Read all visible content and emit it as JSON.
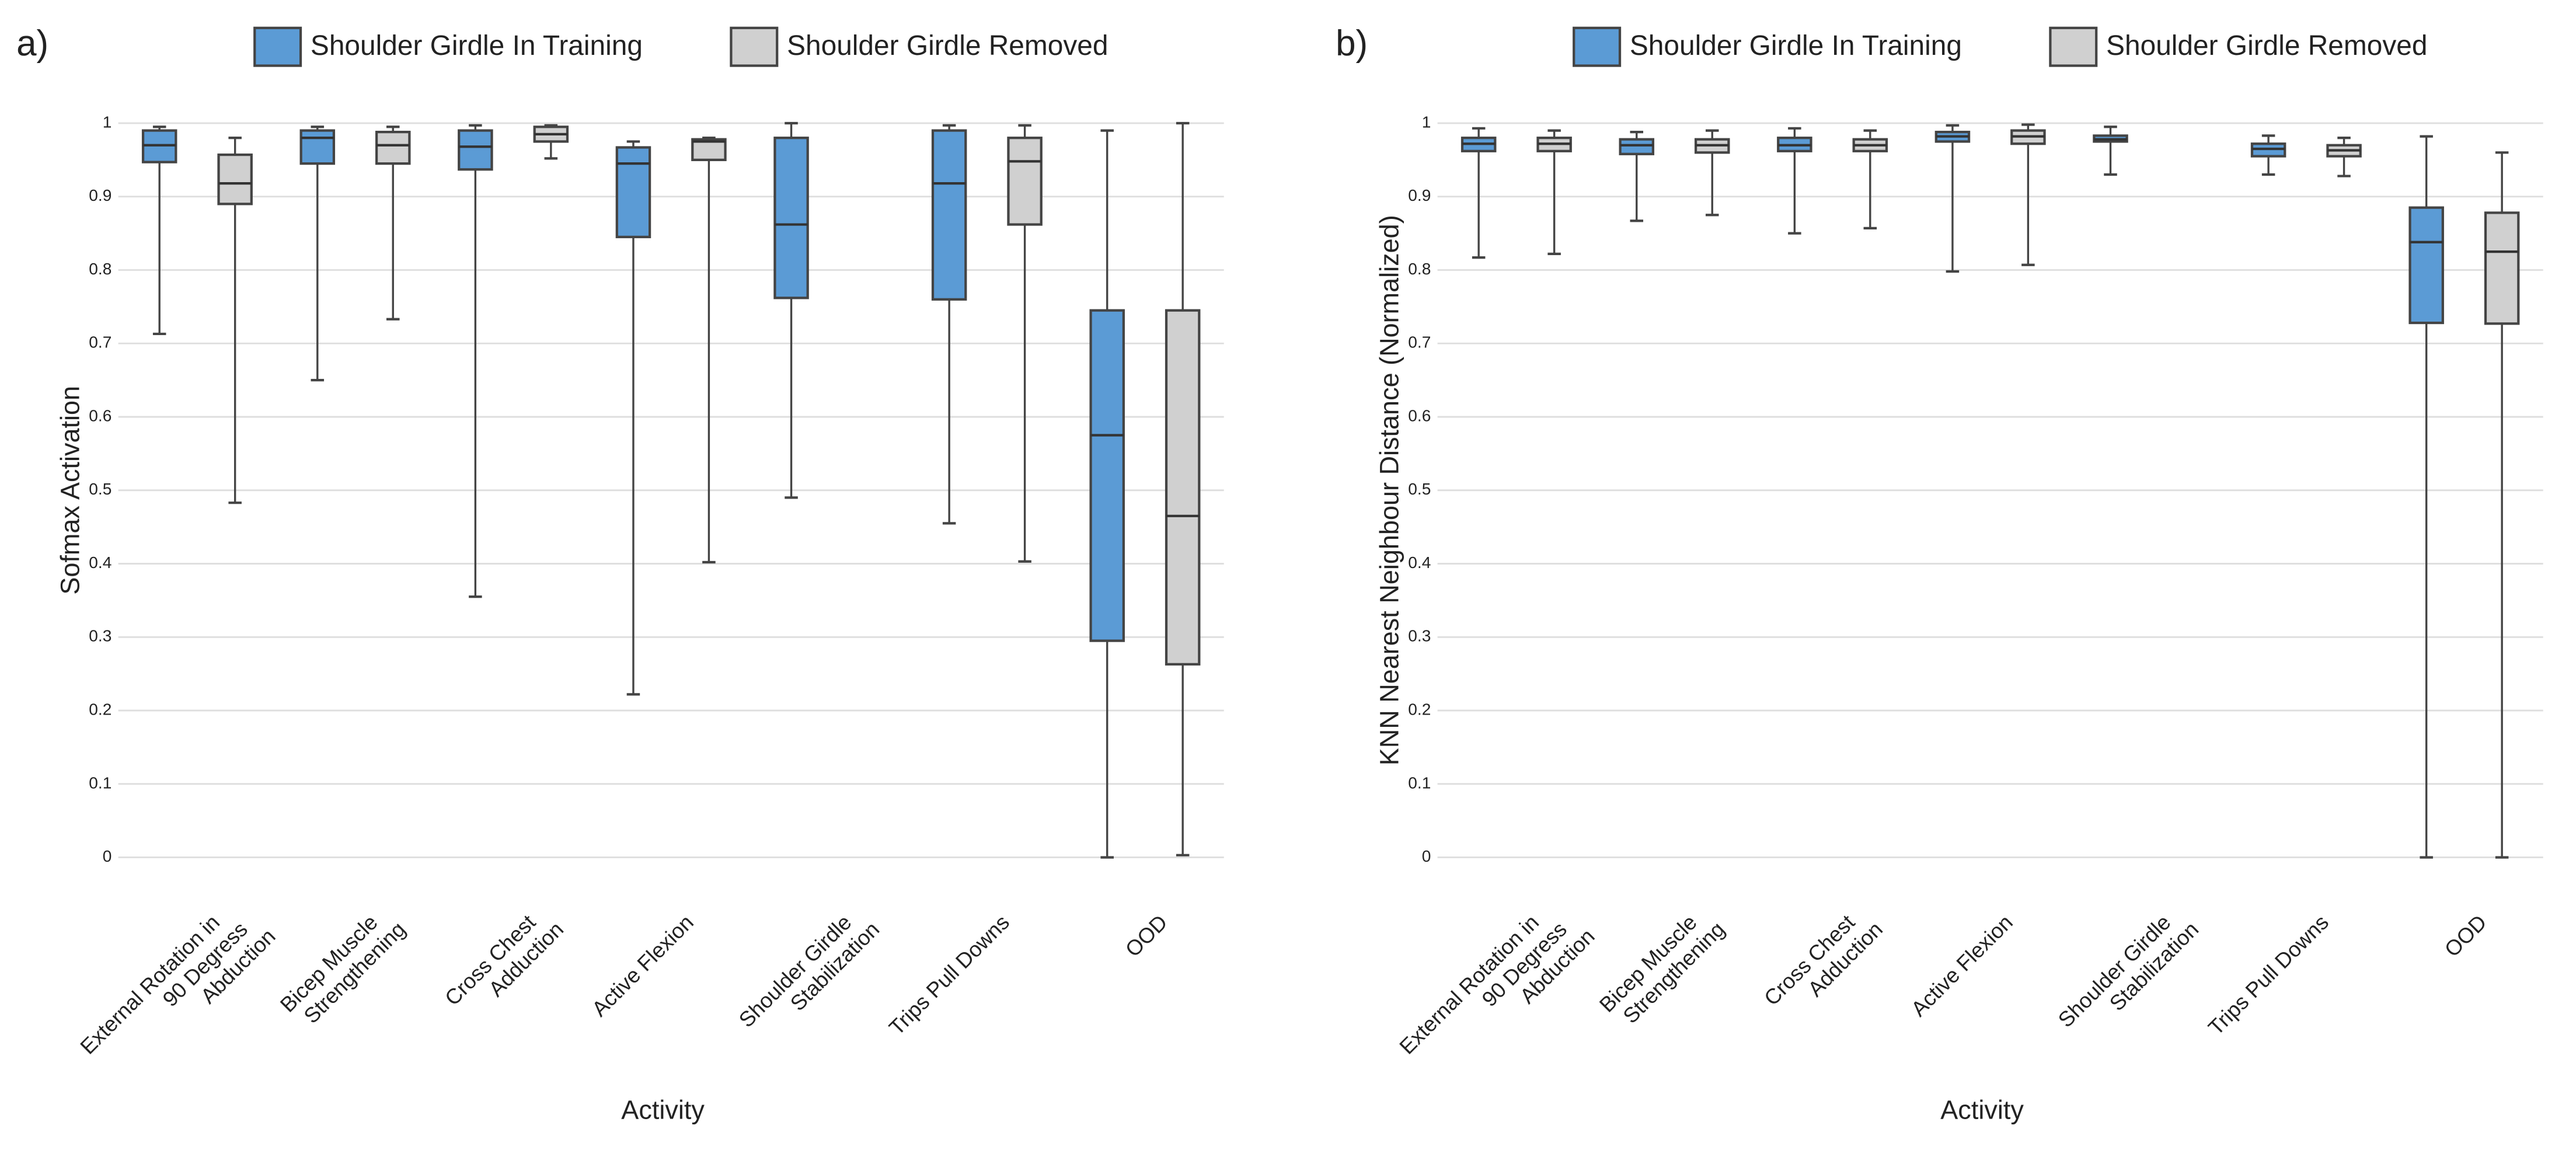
{
  "chart_data": [
    {
      "type": "box",
      "panel": "a)",
      "ylabel": "Sofmax Activation",
      "xlabel": "Activity",
      "categories": [
        [
          "External Rotation in",
          "90 Degress",
          "Abduction"
        ],
        [
          "Bicep Muscle",
          "Strengthening"
        ],
        [
          "Cross Chest",
          "Adduction"
        ],
        [
          "Active Flexion"
        ],
        [
          "Shoulder Girdle",
          "Stabilization"
        ],
        [
          "Trips Pull Downs"
        ],
        [
          "OOD"
        ]
      ],
      "series": [
        {
          "name": "Shoulder Girdle In Training",
          "color": "#5b9bd5",
          "min": [
            0.713,
            0.65,
            0.355,
            0.222,
            0.49,
            0.455,
            0
          ],
          "q1": [
            0.947,
            0.945,
            0.937,
            0.845,
            0.762,
            0.76,
            0.295
          ],
          "median": [
            0.97,
            0.98,
            0.968,
            0.945,
            0.862,
            0.918,
            0.575
          ],
          "q3": [
            0.99,
            0.99,
            0.99,
            0.967,
            0.98,
            0.99,
            0.745
          ],
          "max": [
            0.995,
            0.995,
            0.997,
            0.975,
            1,
            0.997,
            0.99
          ]
        },
        {
          "name": "Shoulder Girdle Removed",
          "color": "#d0d0d0",
          "min": [
            0.483,
            0.733,
            0.952,
            0.402,
            null,
            0.403,
            0.003
          ],
          "q1": [
            0.89,
            0.945,
            0.975,
            0.95,
            null,
            0.862,
            0.263
          ],
          "median": [
            0.918,
            0.97,
            0.985,
            0.975,
            null,
            0.948,
            0.465
          ],
          "q3": [
            0.957,
            0.988,
            0.995,
            0.978,
            null,
            0.98,
            0.745
          ],
          "max": [
            0.98,
            0.995,
            0.997,
            0.98,
            null,
            0.997,
            1
          ]
        }
      ],
      "ylim": [
        0,
        1
      ],
      "yticks": [
        0,
        0.1,
        0.2,
        0.3,
        0.4,
        0.5,
        0.6,
        0.7,
        0.8,
        0.9,
        1
      ],
      "grid": true
    },
    {
      "type": "box",
      "panel": "b)",
      "ylabel": "KNN Nearest Neighbour Distance (Normalized)",
      "xlabel": "Activity",
      "categories": [
        [
          "External Rotation in",
          "90 Degress",
          "Abduction"
        ],
        [
          "Bicep Muscle",
          "Strengthening"
        ],
        [
          "Cross Chest",
          "Adduction"
        ],
        [
          "Active Flexion"
        ],
        [
          "Shoulder Girdle",
          "Stabilization"
        ],
        [
          "Trips Pull Downs"
        ],
        [
          "OOD"
        ]
      ],
      "series": [
        {
          "name": "Shoulder Girdle In Training",
          "color": "#5b9bd5",
          "min": [
            0.817,
            0.867,
            0.85,
            0.798,
            0.93,
            0.93,
            0
          ],
          "q1": [
            0.962,
            0.958,
            0.962,
            0.975,
            0.975,
            0.955,
            0.728
          ],
          "median": [
            0.972,
            0.97,
            0.97,
            0.982,
            0.978,
            0.965,
            0.838
          ],
          "q3": [
            0.98,
            0.978,
            0.98,
            0.988,
            0.983,
            0.972,
            0.885
          ],
          "max": [
            0.993,
            0.988,
            0.993,
            0.997,
            0.995,
            0.983,
            0.982
          ]
        },
        {
          "name": "Shoulder Girdle Removed",
          "color": "#d0d0d0",
          "min": [
            0.822,
            0.875,
            0.857,
            0.807,
            null,
            0.928,
            0
          ],
          "q1": [
            0.962,
            0.96,
            0.962,
            0.972,
            null,
            0.955,
            0.727
          ],
          "median": [
            0.972,
            0.97,
            0.97,
            0.982,
            null,
            0.963,
            0.825
          ],
          "q3": [
            0.98,
            0.978,
            0.978,
            0.99,
            null,
            0.97,
            0.878
          ],
          "max": [
            0.99,
            0.99,
            0.99,
            0.998,
            null,
            0.98,
            0.96
          ]
        }
      ],
      "ylim": [
        0,
        1
      ],
      "yticks": [
        0,
        0.1,
        0.2,
        0.3,
        0.4,
        0.5,
        0.6,
        0.7,
        0.8,
        0.9,
        1
      ],
      "grid": true
    }
  ]
}
